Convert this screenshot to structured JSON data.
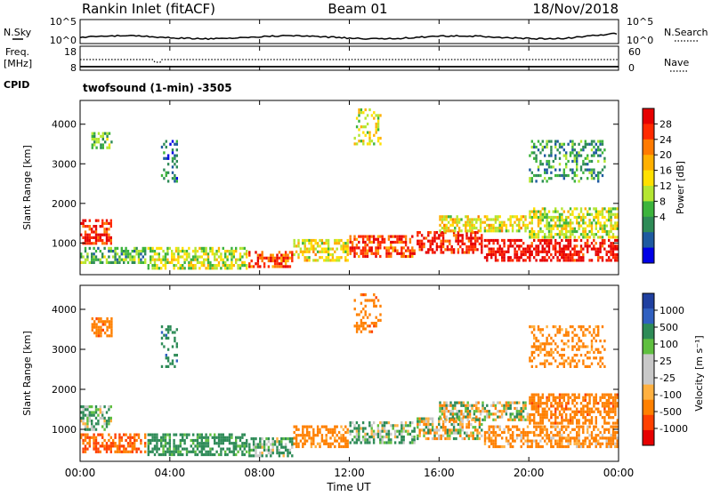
{
  "header": {
    "station": "Rankin Inlet (fitACF)",
    "beam": "Beam 01",
    "date": "18/Nov/2018"
  },
  "summary": {
    "nsky_label": "N.Sky",
    "nsearch_label": "N.Search",
    "freq_label_1": "Freq.",
    "freq_label_2": "[MHz]",
    "nave_label": "Nave",
    "cpid_label": "CPID",
    "nsky_ticks": [
      "10^5",
      "10^0"
    ],
    "nsearch_ticks": [
      "10^5",
      "10^0"
    ],
    "freq_ticks": [
      "18",
      "8"
    ],
    "nave_ticks": [
      "60",
      "0"
    ],
    "cpid_text": "twofsound (1-min) -3505"
  },
  "power_scale": {
    "title": "Power [dB]",
    "labels": [
      "28",
      "24",
      "20",
      "16",
      "12",
      "8",
      "4"
    ],
    "colors": [
      "#e60000",
      "#ff2a00",
      "#ff7a00",
      "#ffb000",
      "#ffe000",
      "#b4e632",
      "#3cb43c",
      "#2e8b57",
      "#1e5aa0",
      "#0000e6"
    ]
  },
  "velocity_scale": {
    "title": "Velocity [m s⁻¹]",
    "labels": [
      "1000",
      "500",
      "100",
      "25",
      "-25",
      "-100",
      "-500",
      "-1000"
    ],
    "colors": [
      "#2040a0",
      "#3060c0",
      "#2e8b57",
      "#5fbf3f",
      "#c8c8c8",
      "#c8c8c8",
      "#ffb040",
      "#ff8000",
      "#ff4000",
      "#e60000"
    ]
  },
  "chart_data": {
    "type": "heatmap",
    "xlabel": "Time UT",
    "ylabel": "Slant Range [km]",
    "xticks": [
      "00:00",
      "04:00",
      "08:00",
      "12:00",
      "16:00",
      "20:00",
      "00:00"
    ],
    "yticks": [
      "1000",
      "2000",
      "3000",
      "4000"
    ],
    "xlim_hours": [
      0,
      24
    ],
    "ylim_km": [
      200,
      4600
    ],
    "power_blobs": [
      {
        "t0": 0.0,
        "t1": 1.5,
        "r0": 900,
        "r1": 1600,
        "v": 26
      },
      {
        "t0": 0.0,
        "t1": 3.0,
        "r0": 400,
        "r1": 900,
        "v": 10
      },
      {
        "t0": 0.5,
        "t1": 1.5,
        "r0": 3300,
        "r1": 3800,
        "v": 10
      },
      {
        "t0": 3.6,
        "t1": 4.4,
        "r0": 2500,
        "r1": 3600,
        "v": 6
      },
      {
        "t0": 3.0,
        "t1": 7.5,
        "r0": 300,
        "r1": 900,
        "v": 14
      },
      {
        "t0": 7.5,
        "t1": 9.5,
        "r0": 300,
        "r1": 800,
        "v": 24
      },
      {
        "t0": 9.5,
        "t1": 12.0,
        "r0": 500,
        "r1": 1100,
        "v": 16
      },
      {
        "t0": 12.0,
        "t1": 15.0,
        "r0": 600,
        "r1": 1200,
        "v": 24
      },
      {
        "t0": 12.2,
        "t1": 13.5,
        "r0": 3400,
        "r1": 4400,
        "v": 14
      },
      {
        "t0": 15.0,
        "t1": 18.0,
        "r0": 700,
        "r1": 1300,
        "v": 26
      },
      {
        "t0": 16.0,
        "t1": 20.0,
        "r0": 1200,
        "r1": 1700,
        "v": 16
      },
      {
        "t0": 18.0,
        "t1": 24.0,
        "r0": 500,
        "r1": 1100,
        "v": 28
      },
      {
        "t0": 20.0,
        "t1": 24.0,
        "r0": 1100,
        "r1": 1900,
        "v": 14
      },
      {
        "t0": 20.0,
        "t1": 23.5,
        "r0": 2500,
        "r1": 3600,
        "v": 8
      }
    ],
    "velocity_blobs": [
      {
        "t0": 0.0,
        "t1": 1.5,
        "r0": 900,
        "r1": 1600,
        "v": 60
      },
      {
        "t0": 0.0,
        "t1": 3.0,
        "r0": 400,
        "r1": 900,
        "v": -300
      },
      {
        "t0": 0.5,
        "t1": 1.5,
        "r0": 3300,
        "r1": 3800,
        "v": -200
      },
      {
        "t0": 3.6,
        "t1": 4.4,
        "r0": 2500,
        "r1": 3600,
        "v": 200
      },
      {
        "t0": 3.0,
        "t1": 7.5,
        "r0": 300,
        "r1": 900,
        "v": 150
      },
      {
        "t0": 7.5,
        "t1": 9.5,
        "r0": 300,
        "r1": 800,
        "v": 80
      },
      {
        "t0": 9.5,
        "t1": 12.0,
        "r0": 500,
        "r1": 1100,
        "v": -150
      },
      {
        "t0": 12.0,
        "t1": 15.0,
        "r0": 600,
        "r1": 1200,
        "v": 60
      },
      {
        "t0": 12.2,
        "t1": 13.5,
        "r0": 3400,
        "r1": 4400,
        "v": -200
      },
      {
        "t0": 15.0,
        "t1": 18.0,
        "r0": 700,
        "r1": 1300,
        "v": 0
      },
      {
        "t0": 16.0,
        "t1": 20.0,
        "r0": 1200,
        "r1": 1700,
        "v": 0
      },
      {
        "t0": 18.0,
        "t1": 24.0,
        "r0": 500,
        "r1": 1100,
        "v": -120
      },
      {
        "t0": 20.0,
        "t1": 24.0,
        "r0": 1100,
        "r1": 1900,
        "v": -200
      },
      {
        "t0": 20.0,
        "t1": 23.5,
        "r0": 2500,
        "r1": 3600,
        "v": -150
      }
    ]
  }
}
